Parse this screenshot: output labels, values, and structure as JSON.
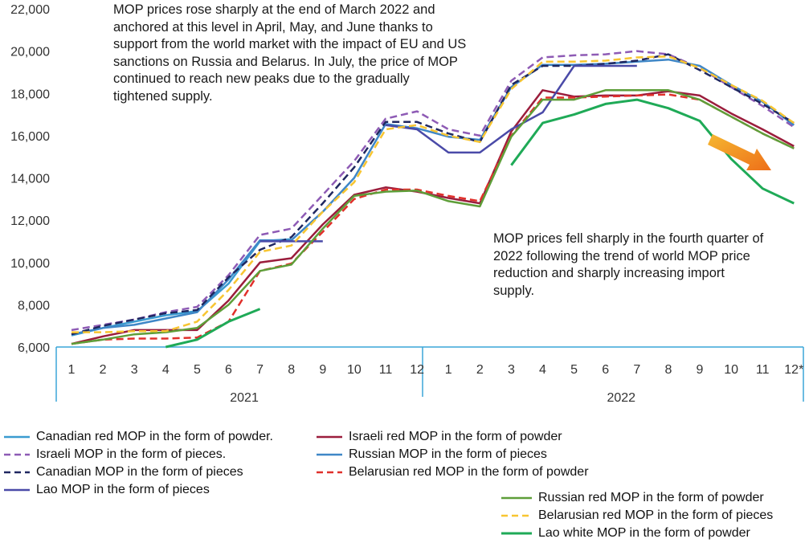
{
  "chart_data": {
    "type": "line",
    "categories": [
      "1",
      "2",
      "3",
      "4",
      "5",
      "6",
      "7",
      "8",
      "9",
      "10",
      "11",
      "12",
      "1",
      "2",
      "3",
      "4",
      "5",
      "6",
      "7",
      "8",
      "9",
      "10",
      "11",
      "12*"
    ],
    "year_groups": [
      {
        "label": "2021",
        "from": 0,
        "to": 11
      },
      {
        "label": "2022",
        "from": 12,
        "to": 23
      }
    ],
    "ylim": [
      6000,
      22000
    ],
    "yticks": [
      6000,
      8000,
      10000,
      12000,
      14000,
      16000,
      18000,
      20000,
      22000
    ],
    "ytick_labels": [
      "6,000",
      "8,000",
      "10,000",
      "12,000",
      "14,000",
      "16,000",
      "18,000",
      "20,000",
      "22,000"
    ],
    "series": [
      {
        "name": "Canadian red MOP in the form of powder.",
        "color": "#3a9bd0",
        "dash": "solid",
        "values": [
          6550,
          6900,
          7200,
          7500,
          7700,
          9000,
          11000,
          11100,
          null,
          null,
          null,
          null,
          null,
          null,
          null,
          null,
          null,
          null,
          null,
          null,
          null,
          null,
          null,
          null
        ]
      },
      {
        "name": "Israeli red MOP in the form of powder",
        "color": "#9b1d3c",
        "dash": "solid",
        "values": [
          6150,
          6500,
          6800,
          6800,
          6800,
          8200,
          10000,
          10200,
          11800,
          13200,
          13550,
          13350,
          13050,
          12800,
          16200,
          18150,
          17850,
          17900,
          17900,
          18100,
          17900,
          17050,
          16300,
          15500
        ]
      },
      {
        "name": "Israeli MOP in the form of pieces.",
        "color": "#8e5bb5",
        "dash": "dash",
        "values": [
          6800,
          7050,
          7300,
          7650,
          7900,
          9400,
          11300,
          11600,
          13200,
          14800,
          16800,
          17150,
          16300,
          16000,
          18600,
          19700,
          19800,
          19850,
          20000,
          19850,
          19200,
          18300,
          17400,
          16400
        ]
      },
      {
        "name": "Russian MOP in the form of pieces",
        "color": "#3f87c7",
        "dash": "solid",
        "values": [
          6600,
          6900,
          7050,
          7350,
          7650,
          9200,
          11050,
          11050,
          12400,
          14000,
          16550,
          16350,
          15950,
          15800,
          18300,
          19350,
          19350,
          19400,
          19500,
          19600,
          19300,
          18400,
          17600,
          16500
        ]
      },
      {
        "name": "Canadian MOP in the form of pieces",
        "color": "#1f2760",
        "dash": "dash",
        "values": [
          6600,
          7000,
          7300,
          7600,
          7750,
          9300,
          10600,
          11200,
          12800,
          14500,
          16650,
          16650,
          16100,
          15700,
          18400,
          19300,
          19300,
          19400,
          19550,
          19850,
          19100,
          18300,
          17500,
          16600
        ]
      },
      {
        "name": "Belarusian red MOP in the form of powder",
        "color": "#e0302b",
        "dash": "dash",
        "values": [
          6150,
          6350,
          6400,
          6400,
          6450,
          7200,
          9600,
          9950,
          11450,
          13000,
          13450,
          13450,
          13150,
          12900,
          16000,
          17800,
          17800,
          17850,
          17900,
          17950,
          17700,
          16900,
          16100,
          15400
        ]
      },
      {
        "name": "Lao MOP in the form of pieces",
        "color": "#4a4aa8",
        "dash": "solid",
        "values": [
          null,
          null,
          null,
          null,
          null,
          null,
          11000,
          11000,
          11000,
          null,
          16500,
          16300,
          15200,
          15200,
          16300,
          17100,
          19300,
          19300,
          19300,
          null,
          null,
          null,
          null,
          null
        ]
      },
      {
        "name": "Russian red MOP in the form of powder",
        "color": "#5e9e39",
        "dash": "solid",
        "values": [
          6150,
          6350,
          6600,
          6700,
          6900,
          8000,
          9600,
          9900,
          11600,
          13150,
          13350,
          13400,
          12900,
          12650,
          15950,
          17700,
          17700,
          18150,
          18150,
          18150,
          17700,
          16900,
          16100,
          15400
        ]
      },
      {
        "name": "Belarusian red MOP in the form of pieces",
        "color": "#f7c531",
        "dash": "dash",
        "values": [
          6700,
          6700,
          6750,
          6750,
          7200,
          8700,
          10500,
          10800,
          12400,
          13800,
          16300,
          16500,
          16000,
          15700,
          18200,
          19500,
          19500,
          19550,
          19700,
          19750,
          19200,
          18400,
          17650,
          16600
        ]
      },
      {
        "name": "Lao white MOP in the form of powder",
        "color": "#1faa57",
        "dash": "solid",
        "values": [
          null,
          null,
          null,
          6000,
          6350,
          7200,
          7800,
          null,
          null,
          null,
          null,
          null,
          null,
          null,
          14600,
          16600,
          17000,
          17500,
          17700,
          17300,
          16700,
          14900,
          13500,
          12800
        ]
      }
    ],
    "legend": [
      "Canadian red MOP in the form of powder.",
      "Israeli red MOP in the form of powder",
      "Israeli MOP in the form of pieces.",
      "Russian MOP in the form of pieces",
      "Canadian MOP in the form of pieces",
      "Belarusian red MOP in the form of powder",
      "Lao MOP in the form of pieces",
      "Russian red MOP in the form of powder",
      "Belarusian red MOP in the form of pieces",
      "Lao white MOP in the form of powder"
    ],
    "annotations": [
      "MOP prices rose sharply at the end of March 2022 and anchored at this level in April, May, and June thanks to support from the world market with the impact of EU and US sanctions on Russia and Belarus. In July, the price of MOP continued to reach new peaks due to the gradually tightened supply.",
      "MOP prices fell sharply in the fourth quarter of 2022 following the trend of world MOP price reduction and sharply increasing import supply."
    ],
    "arrow_color": "#f0901f",
    "axis_color": "#3aa6d8",
    "grid": false
  }
}
